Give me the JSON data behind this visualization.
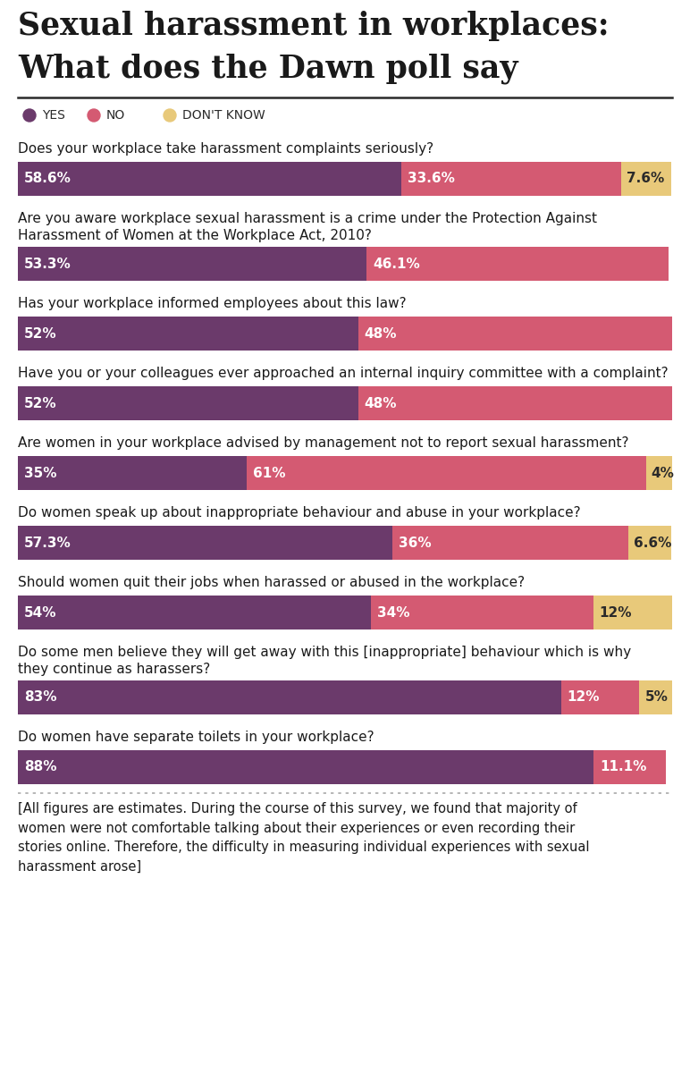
{
  "title_line1": "Sexual harassment in workplaces:",
  "title_line2": "What does the Dawn poll say",
  "background_color": "#ffffff",
  "color_yes": "#6b3a6b",
  "color_no": "#d45a72",
  "color_dontknow": "#e8c97a",
  "questions": [
    {
      "question": "Does your workplace take harassment complaints seriously?",
      "yes": 58.6,
      "no": 33.6,
      "dk": 7.6,
      "yes_label": "58.6%",
      "no_label": "33.6%",
      "dk_label": "7.6%"
    },
    {
      "question": "Are you aware workplace sexual harassment is a crime under the Protection Against\nHarassment of Women at the Workplace Act, 2010?",
      "yes": 53.3,
      "no": 46.1,
      "dk": 0,
      "yes_label": "53.3%",
      "no_label": "46.1%",
      "dk_label": ""
    },
    {
      "question": "Has your workplace informed employees about this law?",
      "yes": 52,
      "no": 48,
      "dk": 0,
      "yes_label": "52%",
      "no_label": "48%",
      "dk_label": ""
    },
    {
      "question": "Have you or your colleagues ever approached an internal inquiry committee with a complaint?",
      "yes": 52,
      "no": 48,
      "dk": 0,
      "yes_label": "52%",
      "no_label": "48%",
      "dk_label": ""
    },
    {
      "question": "Are women in your workplace advised by management not to report sexual harassment?",
      "yes": 35,
      "no": 61,
      "dk": 4,
      "yes_label": "35%",
      "no_label": "61%",
      "dk_label": "4%"
    },
    {
      "question": "Do women speak up about inappropriate behaviour and abuse in your workplace?",
      "yes": 57.3,
      "no": 36,
      "dk": 6.6,
      "yes_label": "57.3%",
      "no_label": "36%",
      "dk_label": "6.6%"
    },
    {
      "question": "Should women quit their jobs when harassed or abused in the workplace?",
      "yes": 54,
      "no": 34,
      "dk": 12,
      "yes_label": "54%",
      "no_label": "34%",
      "dk_label": "12%"
    },
    {
      "question": "Do some men believe they will get away with this [inappropriate] behaviour which is why\nthey continue as harassers?",
      "yes": 83,
      "no": 12,
      "dk": 5,
      "yes_label": "83%",
      "no_label": "12%",
      "dk_label": "5%"
    },
    {
      "question": "Do women have separate toilets in your workplace?",
      "yes": 88,
      "no": 11.1,
      "dk": 0,
      "yes_label": "88%",
      "no_label": "11.1%",
      "dk_label": ""
    }
  ],
  "footnote": "[All figures are estimates. During the course of this survey, we found that majority of\nwomen were not comfortable talking about their experiences or even recording their\nstories online. Therefore, the difficulty in measuring individual experiences with sexual\nharassment arose]"
}
